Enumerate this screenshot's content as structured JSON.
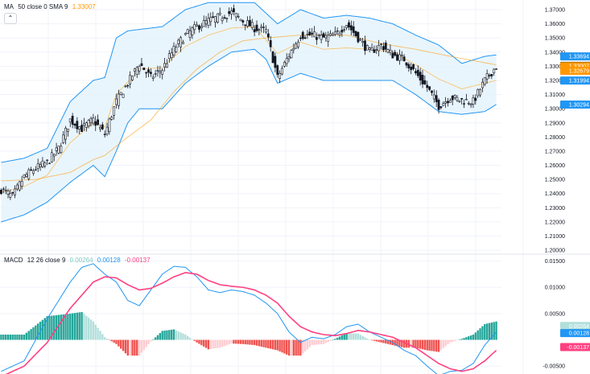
{
  "main_legend": {
    "ma_title": "MA",
    "ma_params": "50 close 0 SMA 9",
    "ma_value": "1.33007",
    "collapse_icon": "chevron-up-icon"
  },
  "macd_legend": {
    "title": "MACD",
    "params": "12 26 close 9",
    "hist_value": "0.00264",
    "macd_value": "0.00128",
    "signal_value": "-0.00137"
  },
  "colors": {
    "up": "#26a69a",
    "down": "#ef5350",
    "up_light": "#b2dfdb",
    "down_light": "#ffcdd2",
    "band_line": "#2196f3",
    "band_fill": "#e3f2fd",
    "ma_line": "#ff9800",
    "macd_line": "#2196f3",
    "signal_line": "#ff4081",
    "candle": "#131722"
  },
  "chart_data": [
    {
      "type": "candlestick",
      "title": "",
      "indicators": [
        "Bollinger Bands",
        "MA 50 close 0 SMA 9"
      ],
      "y_ticks": [
        "1.37000",
        "1.36000",
        "1.35000",
        "1.34000",
        "1.33000",
        "1.32000",
        "1.31000",
        "1.30000",
        "1.29000",
        "1.28000",
        "1.27000",
        "1.26000",
        "1.25000",
        "1.24000",
        "1.23000",
        "1.22000",
        "1.21000",
        "1.20000"
      ],
      "ylim": [
        1.1995,
        1.3734
      ],
      "price_tags": [
        {
          "label": "1.33694",
          "value": 1.33694,
          "color": "#2196f3"
        },
        {
          "label": "1.33029",
          "value": 1.33029,
          "color": "#131722"
        },
        {
          "label": "1.33007",
          "value": 1.33007,
          "color": "#ff9800"
        },
        {
          "label": "1.32679",
          "value": 1.32679,
          "color": "#ff9800"
        },
        {
          "label": "1.31994",
          "value": 1.31994,
          "color": "#2196f3"
        },
        {
          "label": "1.30294",
          "value": 1.30294,
          "color": "#2196f3"
        }
      ],
      "series_anchors": {
        "close": [
          [
            0,
            1.243
          ],
          [
            5,
            1.238
          ],
          [
            10,
            1.252
          ],
          [
            15,
            1.258
          ],
          [
            20,
            1.262
          ],
          [
            25,
            1.272
          ],
          [
            30,
            1.292
          ],
          [
            35,
            1.286
          ],
          [
            40,
            1.292
          ],
          [
            45,
            1.282
          ],
          [
            50,
            1.305
          ],
          [
            55,
            1.318
          ],
          [
            60,
            1.332
          ],
          [
            65,
            1.322
          ],
          [
            70,
            1.328
          ],
          [
            75,
            1.342
          ],
          [
            80,
            1.352
          ],
          [
            85,
            1.358
          ],
          [
            90,
            1.362
          ],
          [
            95,
            1.365
          ],
          [
            100,
            1.368
          ],
          [
            105,
            1.362
          ],
          [
            110,
            1.357
          ],
          [
            115,
            1.355
          ],
          [
            120,
            1.322
          ],
          [
            125,
            1.338
          ],
          [
            130,
            1.352
          ],
          [
            135,
            1.352
          ],
          [
            140,
            1.35
          ],
          [
            145,
            1.352
          ],
          [
            150,
            1.36
          ],
          [
            155,
            1.35
          ],
          [
            160,
            1.34
          ],
          [
            165,
            1.345
          ],
          [
            170,
            1.338
          ],
          [
            175,
            1.335
          ],
          [
            180,
            1.325
          ],
          [
            185,
            1.315
          ],
          [
            190,
            1.302
          ],
          [
            195,
            1.308
          ],
          [
            200,
            1.306
          ],
          [
            205,
            1.305
          ],
          [
            210,
            1.32
          ],
          [
            215,
            1.33
          ]
        ],
        "bb_upper": [
          [
            0,
            1.262
          ],
          [
            10,
            1.265
          ],
          [
            20,
            1.272
          ],
          [
            30,
            1.305
          ],
          [
            40,
            1.32
          ],
          [
            45,
            1.322
          ],
          [
            50,
            1.35
          ],
          [
            55,
            1.355
          ],
          [
            60,
            1.356
          ],
          [
            70,
            1.358
          ],
          [
            80,
            1.37
          ],
          [
            90,
            1.375
          ],
          [
            100,
            1.375
          ],
          [
            110,
            1.375
          ],
          [
            120,
            1.36
          ],
          [
            130,
            1.37
          ],
          [
            140,
            1.364
          ],
          [
            150,
            1.366
          ],
          [
            160,
            1.364
          ],
          [
            170,
            1.36
          ],
          [
            180,
            1.352
          ],
          [
            190,
            1.345
          ],
          [
            200,
            1.332
          ],
          [
            210,
            1.337
          ],
          [
            215,
            1.338
          ]
        ],
        "bb_lower": [
          [
            0,
            1.22
          ],
          [
            10,
            1.225
          ],
          [
            20,
            1.234
          ],
          [
            30,
            1.248
          ],
          [
            40,
            1.26
          ],
          [
            45,
            1.252
          ],
          [
            50,
            1.27
          ],
          [
            55,
            1.29
          ],
          [
            60,
            1.3
          ],
          [
            70,
            1.3
          ],
          [
            80,
            1.318
          ],
          [
            90,
            1.33
          ],
          [
            100,
            1.34
          ],
          [
            110,
            1.342
          ],
          [
            115,
            1.335
          ],
          [
            120,
            1.318
          ],
          [
            130,
            1.325
          ],
          [
            140,
            1.32
          ],
          [
            150,
            1.32
          ],
          [
            160,
            1.32
          ],
          [
            170,
            1.32
          ],
          [
            180,
            1.31
          ],
          [
            190,
            1.298
          ],
          [
            200,
            1.296
          ],
          [
            210,
            1.298
          ],
          [
            215,
            1.303
          ]
        ],
        "ma": [
          [
            0,
            1.249
          ],
          [
            15,
            1.25
          ],
          [
            30,
            1.255
          ],
          [
            40,
            1.264
          ],
          [
            45,
            1.267
          ],
          [
            55,
            1.28
          ],
          [
            65,
            1.292
          ],
          [
            75,
            1.312
          ],
          [
            85,
            1.328
          ],
          [
            95,
            1.34
          ],
          [
            105,
            1.348
          ],
          [
            115,
            1.35
          ],
          [
            130,
            1.352
          ],
          [
            150,
            1.352
          ],
          [
            165,
            1.346
          ],
          [
            180,
            1.342
          ],
          [
            195,
            1.337
          ],
          [
            205,
            1.334
          ],
          [
            215,
            1.331
          ]
        ],
        "bb_mid": [
          [
            0,
            1.241
          ],
          [
            10,
            1.245
          ],
          [
            20,
            1.253
          ],
          [
            30,
            1.276
          ],
          [
            40,
            1.29
          ],
          [
            45,
            1.287
          ],
          [
            50,
            1.31
          ],
          [
            60,
            1.328
          ],
          [
            70,
            1.329
          ],
          [
            80,
            1.344
          ],
          [
            90,
            1.352
          ],
          [
            100,
            1.357
          ],
          [
            110,
            1.358
          ],
          [
            120,
            1.339
          ],
          [
            130,
            1.347
          ],
          [
            140,
            1.342
          ],
          [
            150,
            1.343
          ],
          [
            160,
            1.342
          ],
          [
            170,
            1.34
          ],
          [
            180,
            1.331
          ],
          [
            190,
            1.321
          ],
          [
            200,
            1.314
          ],
          [
            210,
            1.318
          ],
          [
            215,
            1.32
          ]
        ]
      },
      "bar_count": 216
    },
    {
      "type": "macd",
      "title": "",
      "y_ticks": [
        "0.01500",
        "0.01000",
        "0.00500",
        "-0.00500"
      ],
      "ylim": [
        -0.0065,
        0.0157
      ],
      "price_tags": [
        {
          "label": "0.00264",
          "value": 0.00264,
          "color": "#b2dfdb"
        },
        {
          "label": "0.00128",
          "value": 0.00128,
          "color": "#2196f3"
        },
        {
          "label": "-0.00137",
          "value": -0.00137,
          "color": "#ff4081"
        }
      ],
      "series_anchors": {
        "macd": [
          [
            0,
            -0.006
          ],
          [
            10,
            -0.004
          ],
          [
            20,
            0.004
          ],
          [
            30,
            0.011
          ],
          [
            35,
            0.0138
          ],
          [
            40,
            0.0145
          ],
          [
            45,
            0.0125
          ],
          [
            50,
            0.011
          ],
          [
            55,
            0.0075
          ],
          [
            60,
            0.0065
          ],
          [
            65,
            0.0095
          ],
          [
            70,
            0.0125
          ],
          [
            75,
            0.014
          ],
          [
            80,
            0.0138
          ],
          [
            85,
            0.012
          ],
          [
            90,
            0.0095
          ],
          [
            95,
            0.009
          ],
          [
            100,
            0.0095
          ],
          [
            105,
            0.0092
          ],
          [
            110,
            0.0085
          ],
          [
            115,
            0.007
          ],
          [
            120,
            0.005
          ],
          [
            125,
            0.0015
          ],
          [
            130,
            -0.0005
          ],
          [
            135,
            0.0005
          ],
          [
            140,
            0.0002
          ],
          [
            145,
            0.001
          ],
          [
            150,
            0.0025
          ],
          [
            155,
            0.003
          ],
          [
            160,
            0.0015
          ],
          [
            170,
            -0.0005
          ],
          [
            175,
            -0.002
          ],
          [
            180,
            -0.003
          ],
          [
            185,
            -0.005
          ],
          [
            190,
            -0.0068
          ],
          [
            195,
            -0.006
          ],
          [
            200,
            -0.0058
          ],
          [
            205,
            -0.0045
          ],
          [
            210,
            -0.001
          ],
          [
            215,
            0.0015
          ]
        ],
        "signal": [
          [
            0,
            -0.007
          ],
          [
            10,
            -0.005
          ],
          [
            20,
            -0.0005
          ],
          [
            30,
            0.006
          ],
          [
            40,
            0.011
          ],
          [
            45,
            0.012
          ],
          [
            50,
            0.0118
          ],
          [
            55,
            0.0105
          ],
          [
            60,
            0.0095
          ],
          [
            65,
            0.0098
          ],
          [
            70,
            0.0108
          ],
          [
            75,
            0.012
          ],
          [
            80,
            0.0128
          ],
          [
            85,
            0.0125
          ],
          [
            90,
            0.0113
          ],
          [
            95,
            0.0105
          ],
          [
            100,
            0.0102
          ],
          [
            105,
            0.01
          ],
          [
            110,
            0.0095
          ],
          [
            115,
            0.0085
          ],
          [
            120,
            0.007
          ],
          [
            125,
            0.0045
          ],
          [
            130,
            0.0025
          ],
          [
            135,
            0.0015
          ],
          [
            140,
            0.001
          ],
          [
            145,
            0.0008
          ],
          [
            150,
            0.0012
          ],
          [
            155,
            0.0018
          ],
          [
            160,
            0.0015
          ],
          [
            170,
            0.0005
          ],
          [
            175,
            -0.0005
          ],
          [
            180,
            -0.0015
          ],
          [
            185,
            -0.003
          ],
          [
            190,
            -0.0045
          ],
          [
            195,
            -0.0055
          ],
          [
            200,
            -0.006
          ],
          [
            205,
            -0.0055
          ],
          [
            210,
            -0.004
          ],
          [
            215,
            -0.002
          ]
        ]
      }
    }
  ]
}
